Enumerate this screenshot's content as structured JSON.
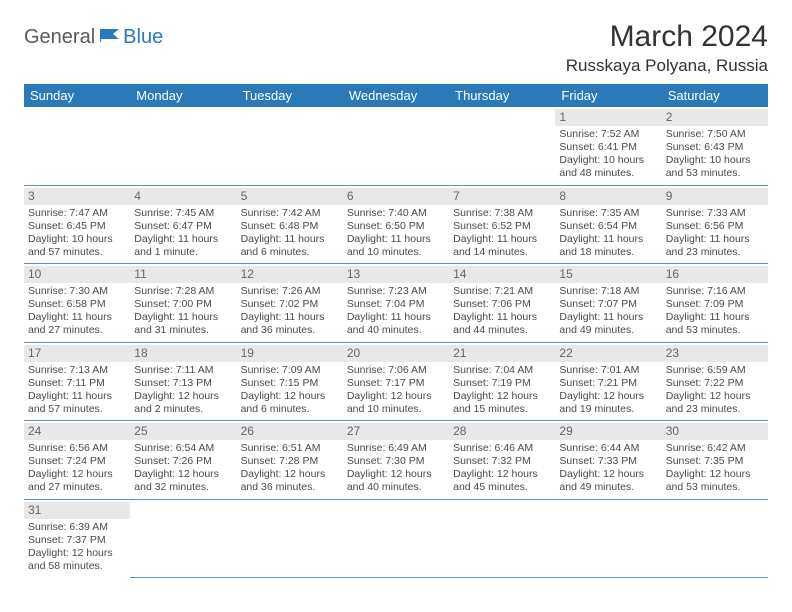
{
  "logo": {
    "part1": "General",
    "part2": "Blue"
  },
  "title": "March 2024",
  "location": "Russkaya Polyana, Russia",
  "colors": {
    "header_bg": "#2a7ab9",
    "header_text": "#ffffff",
    "daynum_bg": "#e8e8e8",
    "cell_border": "#5a8fb8",
    "body_text": "#4a4a4a",
    "logo_gray": "#5a5a5a",
    "logo_blue": "#2a7ab9"
  },
  "weekdays": [
    "Sunday",
    "Monday",
    "Tuesday",
    "Wednesday",
    "Thursday",
    "Friday",
    "Saturday"
  ],
  "weeks": [
    [
      null,
      null,
      null,
      null,
      null,
      {
        "n": "1",
        "sr": "Sunrise: 7:52 AM",
        "ss": "Sunset: 6:41 PM",
        "dl": "Daylight: 10 hours and 48 minutes."
      },
      {
        "n": "2",
        "sr": "Sunrise: 7:50 AM",
        "ss": "Sunset: 6:43 PM",
        "dl": "Daylight: 10 hours and 53 minutes."
      }
    ],
    [
      {
        "n": "3",
        "sr": "Sunrise: 7:47 AM",
        "ss": "Sunset: 6:45 PM",
        "dl": "Daylight: 10 hours and 57 minutes."
      },
      {
        "n": "4",
        "sr": "Sunrise: 7:45 AM",
        "ss": "Sunset: 6:47 PM",
        "dl": "Daylight: 11 hours and 1 minute."
      },
      {
        "n": "5",
        "sr": "Sunrise: 7:42 AM",
        "ss": "Sunset: 6:48 PM",
        "dl": "Daylight: 11 hours and 6 minutes."
      },
      {
        "n": "6",
        "sr": "Sunrise: 7:40 AM",
        "ss": "Sunset: 6:50 PM",
        "dl": "Daylight: 11 hours and 10 minutes."
      },
      {
        "n": "7",
        "sr": "Sunrise: 7:38 AM",
        "ss": "Sunset: 6:52 PM",
        "dl": "Daylight: 11 hours and 14 minutes."
      },
      {
        "n": "8",
        "sr": "Sunrise: 7:35 AM",
        "ss": "Sunset: 6:54 PM",
        "dl": "Daylight: 11 hours and 18 minutes."
      },
      {
        "n": "9",
        "sr": "Sunrise: 7:33 AM",
        "ss": "Sunset: 6:56 PM",
        "dl": "Daylight: 11 hours and 23 minutes."
      }
    ],
    [
      {
        "n": "10",
        "sr": "Sunrise: 7:30 AM",
        "ss": "Sunset: 6:58 PM",
        "dl": "Daylight: 11 hours and 27 minutes."
      },
      {
        "n": "11",
        "sr": "Sunrise: 7:28 AM",
        "ss": "Sunset: 7:00 PM",
        "dl": "Daylight: 11 hours and 31 minutes."
      },
      {
        "n": "12",
        "sr": "Sunrise: 7:26 AM",
        "ss": "Sunset: 7:02 PM",
        "dl": "Daylight: 11 hours and 36 minutes."
      },
      {
        "n": "13",
        "sr": "Sunrise: 7:23 AM",
        "ss": "Sunset: 7:04 PM",
        "dl": "Daylight: 11 hours and 40 minutes."
      },
      {
        "n": "14",
        "sr": "Sunrise: 7:21 AM",
        "ss": "Sunset: 7:06 PM",
        "dl": "Daylight: 11 hours and 44 minutes."
      },
      {
        "n": "15",
        "sr": "Sunrise: 7:18 AM",
        "ss": "Sunset: 7:07 PM",
        "dl": "Daylight: 11 hours and 49 minutes."
      },
      {
        "n": "16",
        "sr": "Sunrise: 7:16 AM",
        "ss": "Sunset: 7:09 PM",
        "dl": "Daylight: 11 hours and 53 minutes."
      }
    ],
    [
      {
        "n": "17",
        "sr": "Sunrise: 7:13 AM",
        "ss": "Sunset: 7:11 PM",
        "dl": "Daylight: 11 hours and 57 minutes."
      },
      {
        "n": "18",
        "sr": "Sunrise: 7:11 AM",
        "ss": "Sunset: 7:13 PM",
        "dl": "Daylight: 12 hours and 2 minutes."
      },
      {
        "n": "19",
        "sr": "Sunrise: 7:09 AM",
        "ss": "Sunset: 7:15 PM",
        "dl": "Daylight: 12 hours and 6 minutes."
      },
      {
        "n": "20",
        "sr": "Sunrise: 7:06 AM",
        "ss": "Sunset: 7:17 PM",
        "dl": "Daylight: 12 hours and 10 minutes."
      },
      {
        "n": "21",
        "sr": "Sunrise: 7:04 AM",
        "ss": "Sunset: 7:19 PM",
        "dl": "Daylight: 12 hours and 15 minutes."
      },
      {
        "n": "22",
        "sr": "Sunrise: 7:01 AM",
        "ss": "Sunset: 7:21 PM",
        "dl": "Daylight: 12 hours and 19 minutes."
      },
      {
        "n": "23",
        "sr": "Sunrise: 6:59 AM",
        "ss": "Sunset: 7:22 PM",
        "dl": "Daylight: 12 hours and 23 minutes."
      }
    ],
    [
      {
        "n": "24",
        "sr": "Sunrise: 6:56 AM",
        "ss": "Sunset: 7:24 PM",
        "dl": "Daylight: 12 hours and 27 minutes."
      },
      {
        "n": "25",
        "sr": "Sunrise: 6:54 AM",
        "ss": "Sunset: 7:26 PM",
        "dl": "Daylight: 12 hours and 32 minutes."
      },
      {
        "n": "26",
        "sr": "Sunrise: 6:51 AM",
        "ss": "Sunset: 7:28 PM",
        "dl": "Daylight: 12 hours and 36 minutes."
      },
      {
        "n": "27",
        "sr": "Sunrise: 6:49 AM",
        "ss": "Sunset: 7:30 PM",
        "dl": "Daylight: 12 hours and 40 minutes."
      },
      {
        "n": "28",
        "sr": "Sunrise: 6:46 AM",
        "ss": "Sunset: 7:32 PM",
        "dl": "Daylight: 12 hours and 45 minutes."
      },
      {
        "n": "29",
        "sr": "Sunrise: 6:44 AM",
        "ss": "Sunset: 7:33 PM",
        "dl": "Daylight: 12 hours and 49 minutes."
      },
      {
        "n": "30",
        "sr": "Sunrise: 6:42 AM",
        "ss": "Sunset: 7:35 PM",
        "dl": "Daylight: 12 hours and 53 minutes."
      }
    ],
    [
      {
        "n": "31",
        "sr": "Sunrise: 6:39 AM",
        "ss": "Sunset: 7:37 PM",
        "dl": "Daylight: 12 hours and 58 minutes."
      },
      null,
      null,
      null,
      null,
      null,
      null
    ]
  ]
}
